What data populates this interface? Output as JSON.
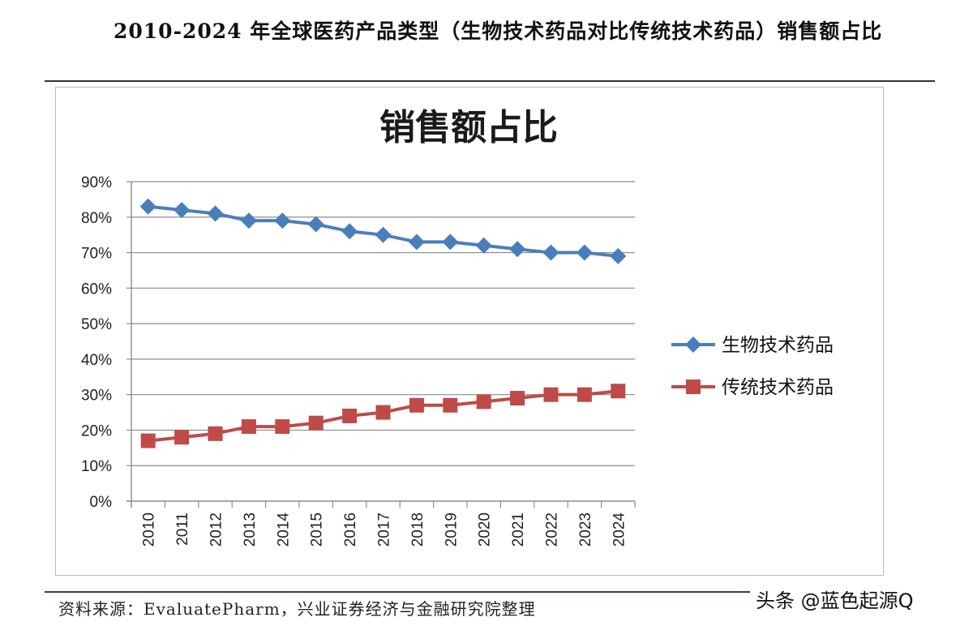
{
  "heading": "2010-2024 年全球医药产品类型（生物技术药品对比传统技术药品）销售额占比",
  "source": "资料来源：EvaluatePharm，兴业证券经济与金融研究院整理",
  "watermark": "头条 @蓝色起源Q",
  "chart_data": {
    "type": "line",
    "title": "销售额占比",
    "categories": [
      "2010",
      "2011",
      "2012",
      "2013",
      "2014",
      "2015",
      "2016",
      "2017",
      "2018",
      "2019",
      "2020",
      "2021",
      "2022",
      "2023",
      "2024"
    ],
    "ylim": [
      0,
      90
    ],
    "yticks": [
      "0%",
      "10%",
      "20%",
      "30%",
      "40%",
      "50%",
      "60%",
      "70%",
      "80%",
      "90%"
    ],
    "grid": true,
    "legend_position": "right",
    "series": [
      {
        "name": "生物技术药品",
        "color": "#4a7ebb",
        "marker": "diamond",
        "values": [
          83,
          82,
          81,
          79,
          79,
          78,
          76,
          75,
          73,
          73,
          72,
          71,
          70,
          70,
          69
        ]
      },
      {
        "name": "传统技术药品",
        "color": "#be4b48",
        "marker": "square",
        "values": [
          17,
          18,
          19,
          21,
          21,
          22,
          24,
          25,
          27,
          27,
          28,
          29,
          30,
          30,
          31
        ]
      }
    ]
  }
}
